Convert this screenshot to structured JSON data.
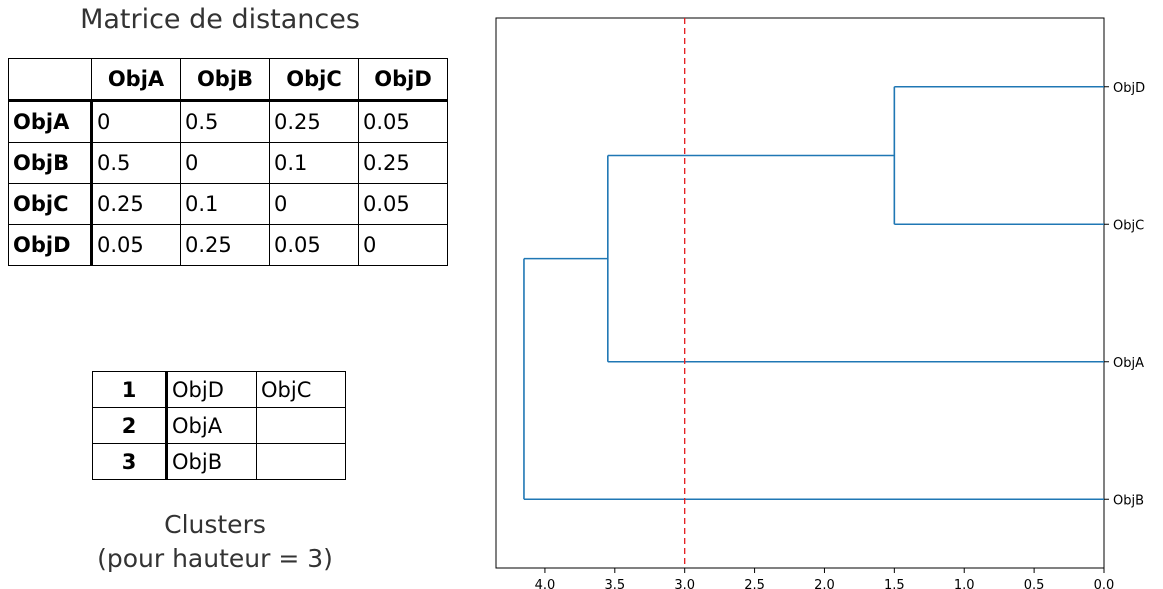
{
  "distance_matrix": {
    "title": "Matrice de distances",
    "columns": [
      "ObjA",
      "ObjB",
      "ObjC",
      "ObjD"
    ],
    "rows": [
      {
        "label": "ObjA",
        "values": [
          "0",
          "0.5",
          "0.25",
          "0.05"
        ]
      },
      {
        "label": "ObjB",
        "values": [
          "0.5",
          "0",
          "0.1",
          "0.25"
        ]
      },
      {
        "label": "ObjC",
        "values": [
          "0.25",
          "0.1",
          "0",
          "0.05"
        ]
      },
      {
        "label": "ObjD",
        "values": [
          "0.05",
          "0.25",
          "0.05",
          "0"
        ]
      }
    ]
  },
  "clusters": {
    "rows": [
      {
        "num": "1",
        "a": "ObjD",
        "b": "ObjC"
      },
      {
        "num": "2",
        "a": "ObjA",
        "b": ""
      },
      {
        "num": "3",
        "a": "ObjB",
        "b": ""
      }
    ],
    "caption_line1": "Clusters",
    "caption_line2": "(pour hauteur = 3)"
  },
  "chart_data": {
    "type": "dendrogram",
    "orientation": "left",
    "leaves": [
      "ObjD",
      "ObjC",
      "ObjA",
      "ObjB"
    ],
    "merges": [
      {
        "left": "ObjD",
        "right": "ObjC",
        "height": 1.5
      },
      {
        "left": "ObjD+ObjC",
        "right": "ObjA",
        "height": 3.55
      },
      {
        "left": "ObjD+ObjC+ObjA",
        "right": "ObjB",
        "height": 4.15
      }
    ],
    "cut_height": 3.0,
    "xlim": [
      4.35,
      0.0
    ],
    "xticks": [
      "4.0",
      "3.5",
      "3.0",
      "2.5",
      "2.0",
      "1.5",
      "1.0",
      "0.5",
      "0.0"
    ],
    "xtick_values": [
      4.0,
      3.5,
      3.0,
      2.5,
      2.0,
      1.5,
      1.0,
      0.5,
      0.0
    ],
    "line_color": "#1f77b4",
    "cut_color": "#e31a1c"
  }
}
